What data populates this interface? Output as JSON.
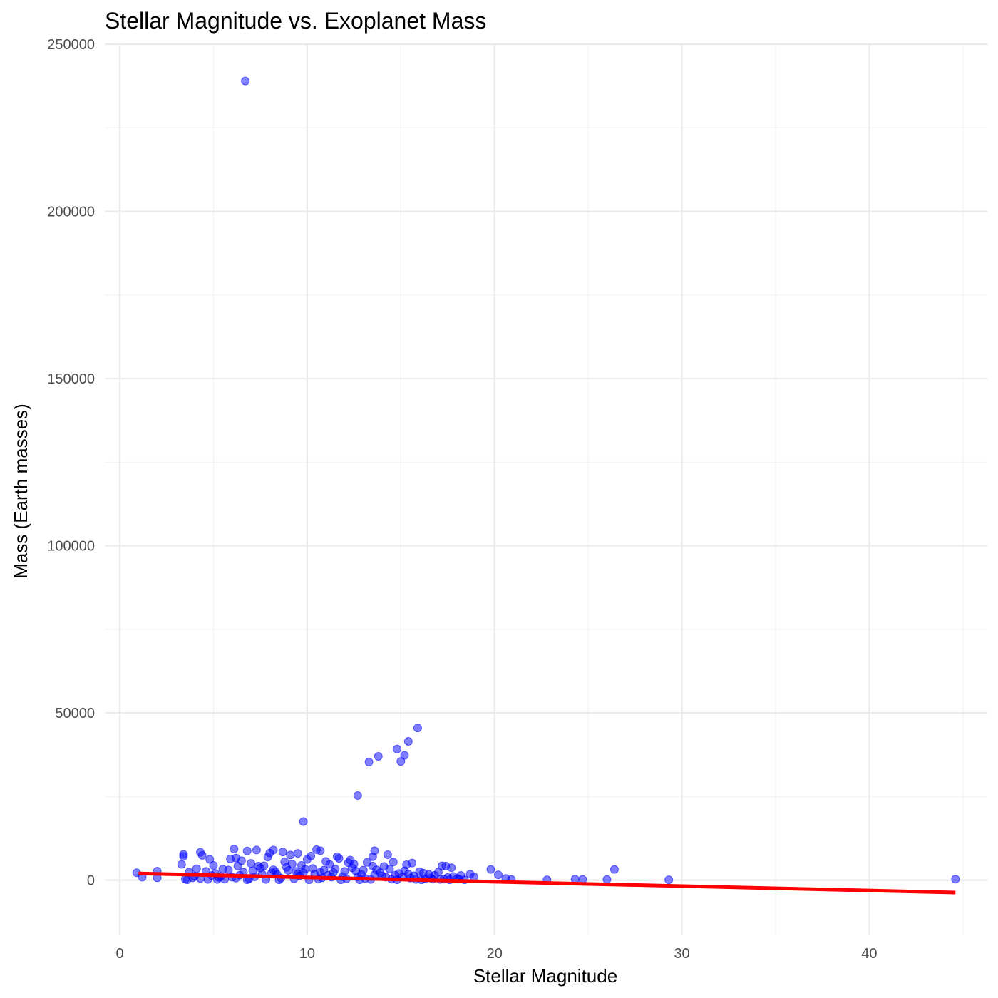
{
  "chart_data": {
    "type": "scatter",
    "title": "Stellar Magnitude vs. Exoplanet Mass",
    "xlabel": "Stellar Magnitude",
    "ylabel": "Mass (Earth masses)",
    "xlim": [
      -0.8,
      46.3
    ],
    "ylim": [
      -16500,
      250000
    ],
    "xticks": [
      0,
      10,
      20,
      30,
      40
    ],
    "yticks": [
      0,
      50000,
      100000,
      150000,
      200000,
      250000
    ],
    "xminor": [
      5,
      15,
      25,
      35,
      45
    ],
    "yminor": [
      25000,
      75000,
      125000,
      175000,
      225000
    ],
    "grid": true,
    "legend": "none",
    "point_color": "#0000ff",
    "trend_color": "#ff0000",
    "series": [
      {
        "kind": "points",
        "points": [
          [
            6.7,
            239000
          ],
          [
            15.9,
            45500
          ],
          [
            15.4,
            41500
          ],
          [
            14.8,
            39200
          ],
          [
            15.2,
            37300
          ],
          [
            13.8,
            37000
          ],
          [
            15.0,
            35500
          ],
          [
            13.3,
            35300
          ],
          [
            12.7,
            25300
          ],
          [
            9.8,
            17500
          ],
          [
            6.1,
            9300
          ],
          [
            7.3,
            9000
          ],
          [
            8.2,
            9000
          ],
          [
            10.5,
            9100
          ],
          [
            13.6,
            8800
          ],
          [
            3.4,
            7700
          ],
          [
            4.3,
            8300
          ],
          [
            6.8,
            8700
          ],
          [
            8.7,
            8400
          ],
          [
            9.5,
            8000
          ],
          [
            10.7,
            8800
          ],
          [
            11.6,
            7000
          ],
          [
            14.3,
            7600
          ],
          [
            8.0,
            8100
          ],
          [
            3.4,
            7100
          ],
          [
            4.4,
            7400
          ],
          [
            6.2,
            6600
          ],
          [
            9.1,
            7500
          ],
          [
            10.2,
            7200
          ],
          [
            12.3,
            6000
          ],
          [
            13.5,
            7000
          ],
          [
            14.6,
            5400
          ],
          [
            4.8,
            6200
          ],
          [
            5.9,
            6300
          ],
          [
            7.9,
            6900
          ],
          [
            10.0,
            6200
          ],
          [
            11.7,
            6500
          ],
          [
            15.6,
            5100
          ],
          [
            3.3,
            4700
          ],
          [
            5.0,
            4400
          ],
          [
            7.0,
            5000
          ],
          [
            9.2,
            4800
          ],
          [
            11.2,
            4700
          ],
          [
            12.5,
            4800
          ],
          [
            14.1,
            4100
          ],
          [
            15.3,
            4600
          ],
          [
            17.2,
            4300
          ],
          [
            17.4,
            4200
          ],
          [
            17.7,
            3700
          ],
          [
            19.8,
            3200
          ],
          [
            20.2,
            1600
          ],
          [
            20.6,
            500
          ],
          [
            20.9,
            200
          ],
          [
            22.8,
            100
          ],
          [
            24.3,
            300
          ],
          [
            24.7,
            200
          ],
          [
            26.0,
            200
          ],
          [
            26.4,
            3200
          ],
          [
            29.3,
            100
          ],
          [
            44.6,
            300
          ],
          [
            0.9,
            2200
          ],
          [
            1.2,
            900
          ],
          [
            2.0,
            2700
          ],
          [
            2.0,
            700
          ],
          [
            18.7,
            1800
          ],
          [
            18.9,
            1000
          ],
          [
            18.2,
            1400
          ],
          [
            16.5,
            1700
          ],
          [
            17.0,
            2400
          ],
          [
            17.8,
            1100
          ],
          [
            3.5,
            300
          ],
          [
            4.0,
            1200
          ],
          [
            4.6,
            2600
          ],
          [
            5.3,
            800
          ],
          [
            5.8,
            3000
          ],
          [
            6.4,
            1500
          ],
          [
            6.9,
            400
          ],
          [
            7.5,
            3600
          ],
          [
            8.1,
            2100
          ],
          [
            8.6,
            600
          ],
          [
            9.0,
            2900
          ],
          [
            9.6,
            1300
          ],
          [
            10.3,
            3500
          ],
          [
            10.8,
            700
          ],
          [
            11.4,
            2300
          ],
          [
            11.9,
            1100
          ],
          [
            12.6,
            2700
          ],
          [
            13.1,
            500
          ],
          [
            13.7,
            3100
          ],
          [
            14.2,
            900
          ],
          [
            14.9,
            2000
          ],
          [
            15.5,
            600
          ],
          [
            16.0,
            2500
          ],
          [
            16.3,
            400
          ],
          [
            16.8,
            1400
          ],
          [
            17.5,
            800
          ],
          [
            18.0,
            500
          ],
          [
            3.7,
            2400
          ],
          [
            4.3,
            500
          ],
          [
            5.1,
            2000
          ],
          [
            5.6,
            300
          ],
          [
            6.6,
            2400
          ],
          [
            7.2,
            1000
          ],
          [
            7.8,
            200
          ],
          [
            8.4,
            1700
          ],
          [
            9.3,
            400
          ],
          [
            9.8,
            2200
          ],
          [
            10.6,
            300
          ],
          [
            11.1,
            1500
          ],
          [
            12.1,
            400
          ],
          [
            12.9,
            1700
          ],
          [
            13.4,
            200
          ],
          [
            14.0,
            1300
          ],
          [
            14.5,
            300
          ],
          [
            15.1,
            1000
          ],
          [
            15.8,
            200
          ],
          [
            16.6,
            700
          ],
          [
            17.3,
            300
          ],
          [
            3.6,
            100
          ],
          [
            4.1,
            3400
          ],
          [
            4.9,
            1400
          ],
          [
            5.5,
            3300
          ],
          [
            6.0,
            900
          ],
          [
            6.3,
            4200
          ],
          [
            7.1,
            2800
          ],
          [
            7.7,
            4300
          ],
          [
            8.3,
            2500
          ],
          [
            8.9,
            3800
          ],
          [
            9.4,
            2600
          ],
          [
            9.9,
            3300
          ],
          [
            10.4,
            1800
          ],
          [
            10.9,
            3000
          ],
          [
            11.5,
            3300
          ],
          [
            12.0,
            2600
          ],
          [
            12.4,
            3700
          ],
          [
            13.0,
            3000
          ],
          [
            13.5,
            4200
          ],
          [
            13.9,
            2200
          ],
          [
            14.4,
            3300
          ],
          [
            14.7,
            1500
          ],
          [
            15.2,
            2800
          ],
          [
            15.7,
            1300
          ],
          [
            16.2,
            2100
          ],
          [
            16.7,
            300
          ],
          [
            17.6,
            100
          ],
          [
            18.1,
            300
          ],
          [
            18.4,
            100
          ],
          [
            6.5,
            5800
          ],
          [
            8.8,
            5500
          ],
          [
            11.0,
            5600
          ],
          [
            12.2,
            5200
          ],
          [
            13.2,
            5300
          ],
          [
            7.4,
            4200
          ],
          [
            9.7,
            4400
          ],
          [
            5.2,
            200
          ],
          [
            6.8,
            100
          ],
          [
            8.5,
            100
          ],
          [
            10.1,
            100
          ],
          [
            11.8,
            100
          ],
          [
            12.8,
            100
          ],
          [
            14.8,
            100
          ],
          [
            16.1,
            100
          ],
          [
            17.1,
            200
          ],
          [
            3.9,
            700
          ],
          [
            4.7,
            200
          ],
          [
            5.4,
            1100
          ],
          [
            6.2,
            600
          ],
          [
            7.6,
            1800
          ],
          [
            8.2,
            3100
          ],
          [
            9.5,
            1900
          ],
          [
            10.7,
            2400
          ],
          [
            11.3,
            900
          ],
          [
            12.7,
            1000
          ],
          [
            13.6,
            1600
          ],
          [
            15.4,
            1800
          ]
        ]
      },
      {
        "kind": "fit",
        "line": [
          [
            1.0,
            2000
          ],
          [
            44.6,
            -3700
          ]
        ]
      }
    ]
  }
}
